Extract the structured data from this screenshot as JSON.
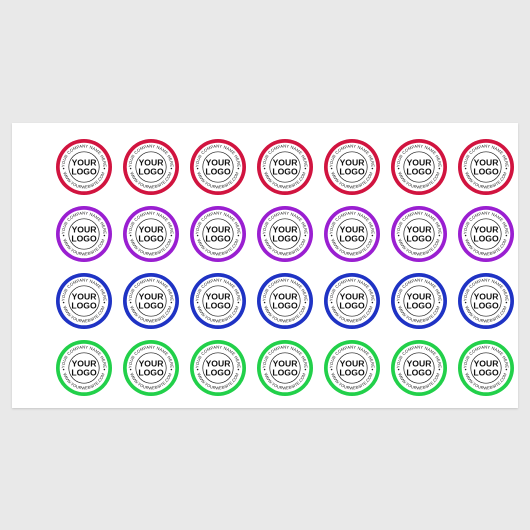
{
  "sticker": {
    "logo_line1": "YOUR",
    "logo_line2": "LOGO",
    "arc_top": "YOUR COMPANY NAME HERE",
    "arc_bottom": "WWW.YOURWEBSITE.COM"
  },
  "rows": [
    {
      "name": "red",
      "color": "#d1143f",
      "count": 7
    },
    {
      "name": "purple",
      "color": "#9a1fd1",
      "count": 7
    },
    {
      "name": "blue",
      "color": "#1f33c4",
      "count": 7
    },
    {
      "name": "green",
      "color": "#22d04a",
      "count": 7
    }
  ]
}
